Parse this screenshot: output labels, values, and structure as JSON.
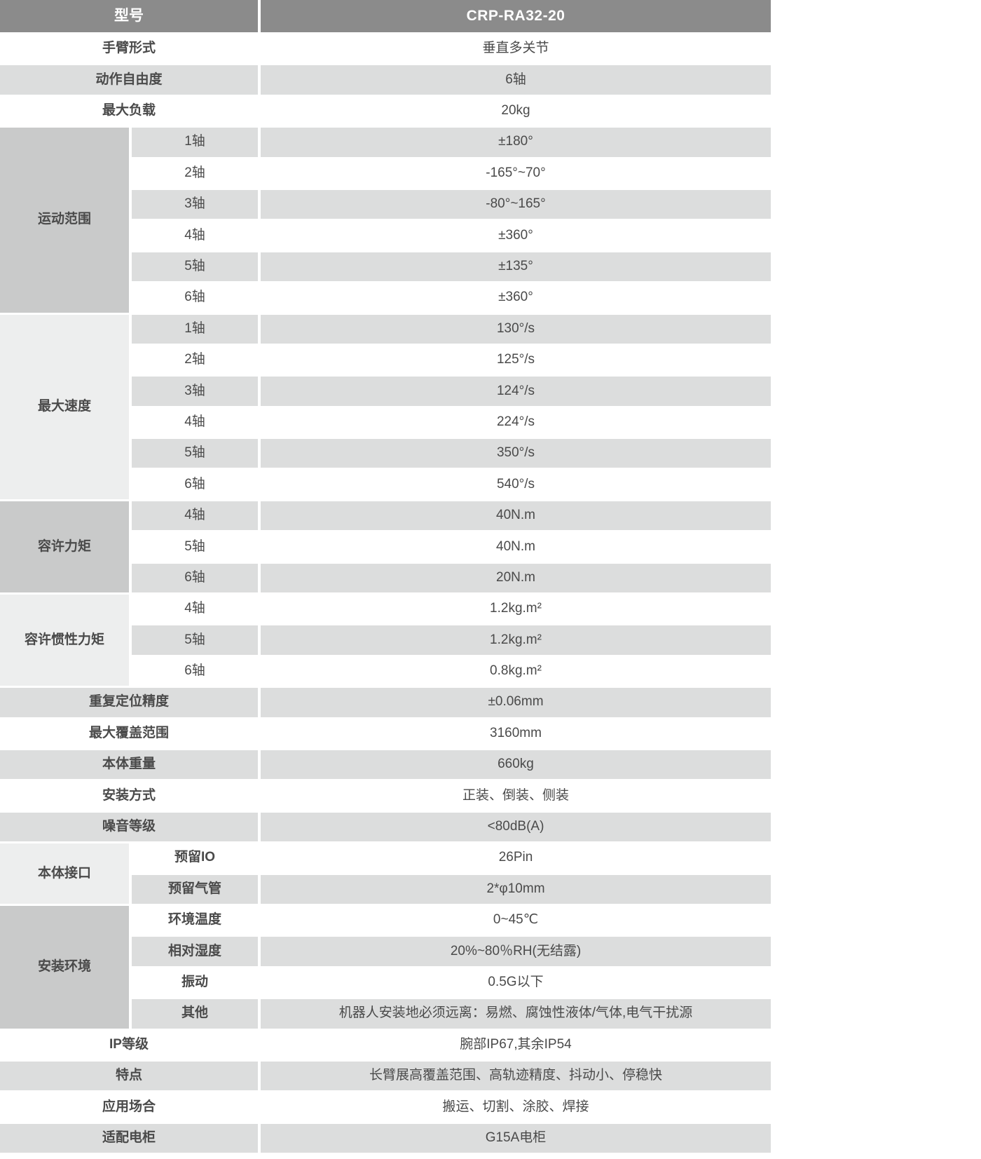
{
  "colors": {
    "header_bg": "#8b8b8b",
    "header_text": "#ffffff",
    "row_gray": "#dcdddd",
    "group_dark": "#c9caca",
    "group_light": "#edeeee",
    "text": "#4a4a4a"
  },
  "header": {
    "label": "型号",
    "value": "CRP-RA32-20"
  },
  "sections": [
    {
      "kind": "row",
      "label": "手臂形式",
      "value": "垂直多关节"
    },
    {
      "kind": "row",
      "label": "动作自由度",
      "value": "6轴"
    },
    {
      "kind": "row",
      "label": "最大负载",
      "value": "20kg"
    },
    {
      "kind": "group",
      "label": "运动范围",
      "tone": "dark",
      "sub_bold": false,
      "items": [
        {
          "label": "1轴",
          "value": "±180°"
        },
        {
          "label": "2轴",
          "value": "-165°~70°"
        },
        {
          "label": "3轴",
          "value": "-80°~165°"
        },
        {
          "label": "4轴",
          "value": "±360°"
        },
        {
          "label": "5轴",
          "value": "±135°"
        },
        {
          "label": "6轴",
          "value": "±360°"
        }
      ]
    },
    {
      "kind": "group",
      "label": "最大速度",
      "tone": "light",
      "sub_bold": false,
      "items": [
        {
          "label": "1轴",
          "value": "130°/s"
        },
        {
          "label": "2轴",
          "value": "125°/s"
        },
        {
          "label": "3轴",
          "value": "124°/s"
        },
        {
          "label": "4轴",
          "value": "224°/s"
        },
        {
          "label": "5轴",
          "value": "350°/s"
        },
        {
          "label": "6轴",
          "value": "540°/s"
        }
      ]
    },
    {
      "kind": "group",
      "label": "容许力矩",
      "tone": "dark",
      "sub_bold": false,
      "items": [
        {
          "label": "4轴",
          "value": "40N.m"
        },
        {
          "label": "5轴",
          "value": "40N.m"
        },
        {
          "label": "6轴",
          "value": "20N.m"
        }
      ]
    },
    {
      "kind": "group",
      "label": "容许惯性力矩",
      "tone": "light",
      "sub_bold": false,
      "items": [
        {
          "label": "4轴",
          "value": "1.2kg.m²"
        },
        {
          "label": "5轴",
          "value": "1.2kg.m²"
        },
        {
          "label": "6轴",
          "value": "0.8kg.m²"
        }
      ]
    },
    {
      "kind": "row",
      "label": "重复定位精度",
      "value": "±0.06mm"
    },
    {
      "kind": "row",
      "label": "最大覆盖范围",
      "value": "3160mm"
    },
    {
      "kind": "row",
      "label": "本体重量",
      "value": "660kg"
    },
    {
      "kind": "row",
      "label": "安装方式",
      "value": "正装、倒装、侧装"
    },
    {
      "kind": "row",
      "label": "噪音等级",
      "value": "<80dB(A)"
    },
    {
      "kind": "group",
      "label": "本体接口",
      "tone": "light",
      "sub_bold": true,
      "items": [
        {
          "label": "预留IO",
          "value": "26Pin"
        },
        {
          "label": "预留气管",
          "value": "2*φ10mm"
        }
      ]
    },
    {
      "kind": "group",
      "label": "安装环境",
      "tone": "dark",
      "sub_bold": true,
      "items": [
        {
          "label": "环境温度",
          "value": "0~45℃"
        },
        {
          "label": "相对湿度",
          "value": "20%~80％RH(无结露)"
        },
        {
          "label": "振动",
          "value": "0.5G以下"
        },
        {
          "label": "其他",
          "value": "机器人安装地必须远离：易燃、腐蚀性液体/气体,电气干扰源"
        }
      ]
    },
    {
      "kind": "row",
      "label": "IP等级",
      "value": "腕部IP67,其余IP54"
    },
    {
      "kind": "row",
      "label": "特点",
      "value": "长臂展高覆盖范围、高轨迹精度、抖动小、停稳快"
    },
    {
      "kind": "row",
      "label": "应用场合",
      "value": "搬运、切割、涂胶、焊接"
    },
    {
      "kind": "row",
      "label": "适配电柜",
      "value": "G15A电柜"
    }
  ]
}
